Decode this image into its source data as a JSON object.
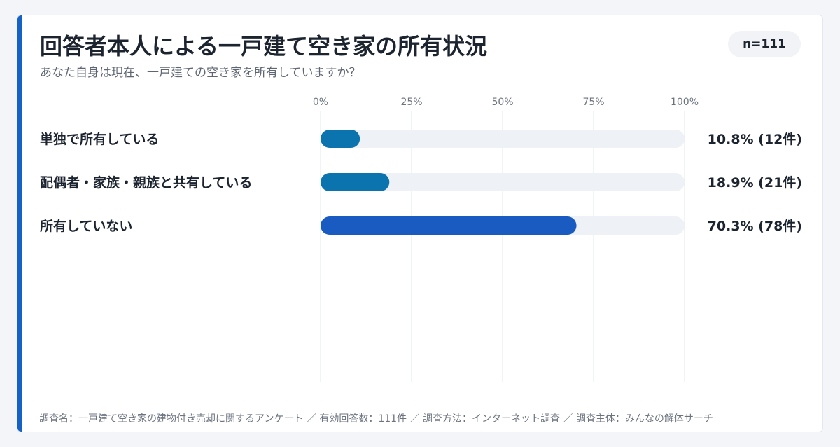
{
  "title": "回答者本人による一戸建て空き家の所有状況",
  "subtitle": "あなた自身は現在、一戸建ての空き家を所有していますか？",
  "badge": "n=111",
  "footnote": "調査名：一戸建て空き家の建物付き売却に関するアンケート ／ 有効回答数：111件 ／ 調査方法：インターネット調査 ／ 調査主体：みんなの解体サーチ",
  "colors": {
    "accent": "#1662c4",
    "bar_light": "#0b73ad",
    "bar_dark": "#1a5bc2",
    "track": "#eef1f5",
    "grid": "#e3e8ee"
  },
  "chart_data": {
    "type": "bar",
    "orientation": "horizontal",
    "categories": [
      "単独で所有している",
      "配偶者・家族・親族と共有している",
      "所有していない"
    ],
    "values": [
      10.8,
      18.9,
      70.3
    ],
    "counts": [
      12,
      21,
      78
    ],
    "value_labels": [
      "10.8% (12件)",
      "18.9% (21件)",
      "70.3% (78件)"
    ],
    "xlim": [
      0,
      100
    ],
    "x_ticks": [
      0,
      25,
      50,
      75,
      100
    ],
    "x_tick_labels": [
      "0%",
      "25%",
      "50%",
      "75%",
      "100%"
    ],
    "grid": true
  }
}
